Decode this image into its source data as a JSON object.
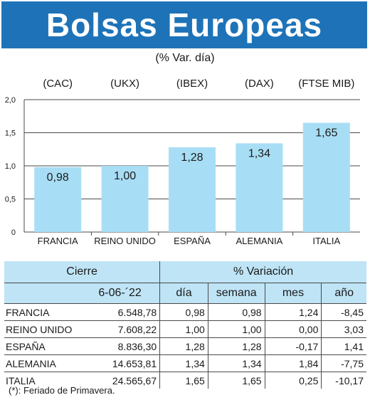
{
  "title": "Bolsas Europeas",
  "subtitle": "(% Var. día)",
  "chart_data": {
    "type": "bar",
    "categories": [
      "FRANCIA",
      "REINO UNIDO",
      "ESPAÑA",
      "ALEMANIA",
      "ITALIA"
    ],
    "indices": [
      "(CAC)",
      "(UKX)",
      "(IBEX)",
      "(DAX)",
      "(FTSE MIB)"
    ],
    "values": [
      0.98,
      1.0,
      1.28,
      1.34,
      1.65
    ],
    "value_labels": [
      "0,98",
      "1,00",
      "1,28",
      "1,34",
      "1,65"
    ],
    "ylim": [
      0,
      2.0
    ],
    "yticks": [
      0,
      0.5,
      1.0,
      1.5,
      2.0
    ],
    "ytick_labels": [
      "0",
      "0,5",
      "1,0",
      "1,5",
      "2,0"
    ],
    "grid": true,
    "bar_color": "#a8def5"
  },
  "table": {
    "header_cierre": "Cierre",
    "header_variacion": "% Variación",
    "date_label": "6-06-´22",
    "col_dia": "día",
    "col_semana": "semana",
    "col_mes": "mes",
    "col_ano": "año",
    "rows": [
      {
        "name": "FRANCIA",
        "cierre": "6.548,78",
        "dia": "0,98",
        "semana": "0,98",
        "mes": "1,24",
        "ano": "-8,45"
      },
      {
        "name": "REINO UNIDO",
        "cierre": "7.608,22",
        "dia": "1,00",
        "semana": "1,00",
        "mes": "0,00",
        "ano": "3,03"
      },
      {
        "name": "ESPAÑA",
        "cierre": "8.836,30",
        "dia": "1,28",
        "semana": "1,28",
        "mes": "-0,17",
        "ano": "1,41"
      },
      {
        "name": "ALEMANIA",
        "cierre": "14.653,81",
        "dia": "1,34",
        "semana": "1,34",
        "mes": "1,84",
        "ano": "-7,75"
      },
      {
        "name": "ITALIA",
        "cierre": "24.565,67",
        "dia": "1,65",
        "semana": "1,65",
        "mes": "0,25",
        "ano": "-10,17"
      }
    ]
  },
  "footnote": "(*): Feriado de Primavera."
}
